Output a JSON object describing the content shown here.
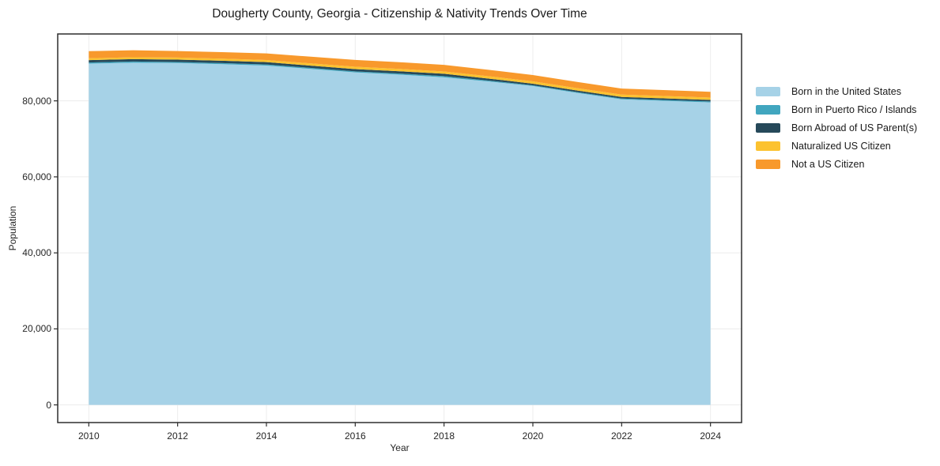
{
  "chart_data": {
    "type": "area",
    "stacked": true,
    "title": "Dougherty County, Georgia - Citizenship & Nativity Trends Over Time",
    "xlabel": "Year",
    "ylabel": "Population",
    "x": [
      2010,
      2011,
      2012,
      2013,
      2014,
      2015,
      2016,
      2017,
      2018,
      2019,
      2020,
      2021,
      2022,
      2023,
      2024
    ],
    "series": [
      {
        "name": "Born in the United States",
        "color": "#a6d2e7",
        "values": [
          89800,
          90050,
          89950,
          89650,
          89300,
          88400,
          87500,
          86900,
          86200,
          85100,
          83900,
          82100,
          80400,
          80000,
          79600
        ]
      },
      {
        "name": "Born in Puerto Rico / Islands",
        "color": "#41a6bf",
        "values": [
          300,
          300,
          280,
          280,
          280,
          260,
          250,
          280,
          300,
          250,
          200,
          200,
          200,
          230,
          250
        ]
      },
      {
        "name": "Born Abroad of US Parent(s)",
        "color": "#26495a",
        "values": [
          620,
          620,
          620,
          620,
          620,
          610,
          600,
          610,
          620,
          520,
          420,
          420,
          420,
          410,
          400
        ]
      },
      {
        "name": "Naturalized US Citizen",
        "color": "#fcc22f",
        "values": [
          480,
          500,
          550,
          545,
          540,
          580,
          620,
          620,
          620,
          620,
          620,
          620,
          620,
          620,
          620
        ]
      },
      {
        "name": "Not a US Citizen",
        "color": "#f8992c",
        "values": [
          1870,
          1850,
          1700,
          1720,
          1740,
          1770,
          1800,
          1760,
          1720,
          1690,
          1660,
          1630,
          1600,
          1560,
          1520
        ]
      }
    ],
    "xlim": [
      2009.3,
      2024.7
    ],
    "ylim": [
      -4650,
      97600
    ],
    "xticks": {
      "values": [
        2010,
        2012,
        2014,
        2016,
        2018,
        2020,
        2022,
        2024
      ],
      "labels": [
        "2010",
        "2012",
        "2014",
        "2016",
        "2018",
        "2020",
        "2022",
        "2024"
      ]
    },
    "yticks": {
      "values": [
        0,
        20000,
        40000,
        60000,
        80000
      ],
      "labels": [
        "0",
        "20,000",
        "40,000",
        "60,000",
        "80,000"
      ]
    },
    "grid": true,
    "grid_color": "#ececec",
    "spine_color": "#2d2d2d",
    "legend_position": "outside-center-right"
  }
}
